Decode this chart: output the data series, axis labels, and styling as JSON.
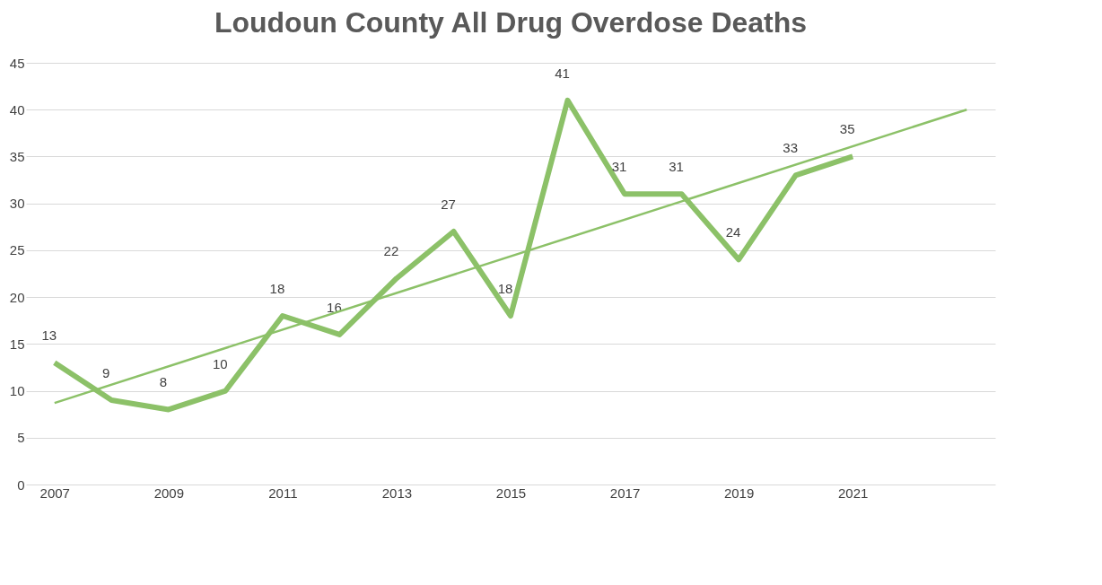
{
  "chart_data": {
    "type": "line",
    "title": "Loudoun County All Drug Overdose Deaths",
    "xlim": [
      2006.5,
      2023.5
    ],
    "xticks": [
      2007,
      2009,
      2011,
      2013,
      2015,
      2017,
      2019,
      2021
    ],
    "ylim": [
      0,
      45
    ],
    "yticks": [
      0,
      5,
      10,
      15,
      20,
      25,
      30,
      35,
      40,
      45
    ],
    "grid": "y",
    "marker": "none",
    "line_style": "solid",
    "series": [
      {
        "color": "#8cc168",
        "x": [
          2007,
          2008,
          2009,
          2010,
          2011,
          2012,
          2013,
          2014,
          2015,
          2016,
          2017,
          2018,
          2019,
          2020,
          2021
        ],
        "values": [
          13,
          9,
          8,
          10,
          18,
          16,
          22,
          27,
          18,
          41,
          31,
          31,
          24,
          33,
          35
        ],
        "value_labels": [
          "13",
          "9",
          "8",
          "10",
          "18",
          "16",
          "22",
          "27",
          "18",
          "41",
          "31",
          "31",
          "24",
          "33",
          "35"
        ]
      },
      {
        "type": "line",
        "color": "#8cc168",
        "x": [
          2007,
          2023
        ],
        "values": [
          8.7,
          40
        ]
      }
    ]
  }
}
